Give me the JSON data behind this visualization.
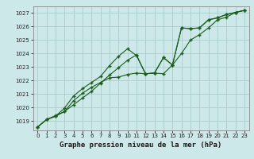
{
  "title": "Graphe pression niveau de la mer (hPa)",
  "yticks": [
    1019,
    1020,
    1021,
    1022,
    1023,
    1024,
    1025,
    1026,
    1027
  ],
  "ylim": [
    1018.3,
    1027.5
  ],
  "xlim": [
    -0.5,
    23.5
  ],
  "bg_color": "#cce8e8",
  "grid_color": "#aacccc",
  "line_color": "#1a5c1a",
  "hours": [
    0,
    1,
    2,
    3,
    4,
    5,
    6,
    7,
    8,
    9,
    10,
    11,
    12,
    13,
    14,
    15,
    16,
    17,
    18,
    19,
    20,
    21,
    22,
    23
  ],
  "line1": [
    1018.55,
    1019.1,
    1019.4,
    1019.7,
    1020.2,
    1020.7,
    1021.2,
    1021.8,
    1022.4,
    1022.95,
    1023.5,
    1023.9,
    1022.5,
    1022.55,
    1023.7,
    1023.15,
    1025.9,
    1025.85,
    1025.9,
    1026.5,
    1026.65,
    1026.9,
    1027.05,
    1027.2
  ],
  "line2": [
    1018.55,
    1019.1,
    1019.35,
    1019.95,
    1020.85,
    1021.4,
    1021.85,
    1022.3,
    1023.1,
    1023.8,
    1024.35,
    1023.85,
    1022.5,
    1022.55,
    1023.7,
    1023.15,
    1025.9,
    1025.85,
    1025.9,
    1026.5,
    1026.65,
    1026.9,
    1027.05,
    1027.2
  ],
  "line3": [
    1018.55,
    1019.1,
    1019.35,
    1019.7,
    1020.5,
    1021.05,
    1021.5,
    1021.85,
    1022.2,
    1022.25,
    1022.45,
    1022.55,
    1022.5,
    1022.55,
    1022.5,
    1023.15,
    1024.0,
    1025.0,
    1025.4,
    1025.9,
    1026.5,
    1026.7,
    1027.05,
    1027.2
  ],
  "xlabel_ticks": [
    0,
    1,
    2,
    3,
    4,
    5,
    6,
    7,
    8,
    9,
    10,
    11,
    12,
    13,
    14,
    15,
    16,
    17,
    18,
    19,
    20,
    21,
    22,
    23
  ],
  "tick_fontsize": 5.0,
  "title_fontsize": 6.5
}
